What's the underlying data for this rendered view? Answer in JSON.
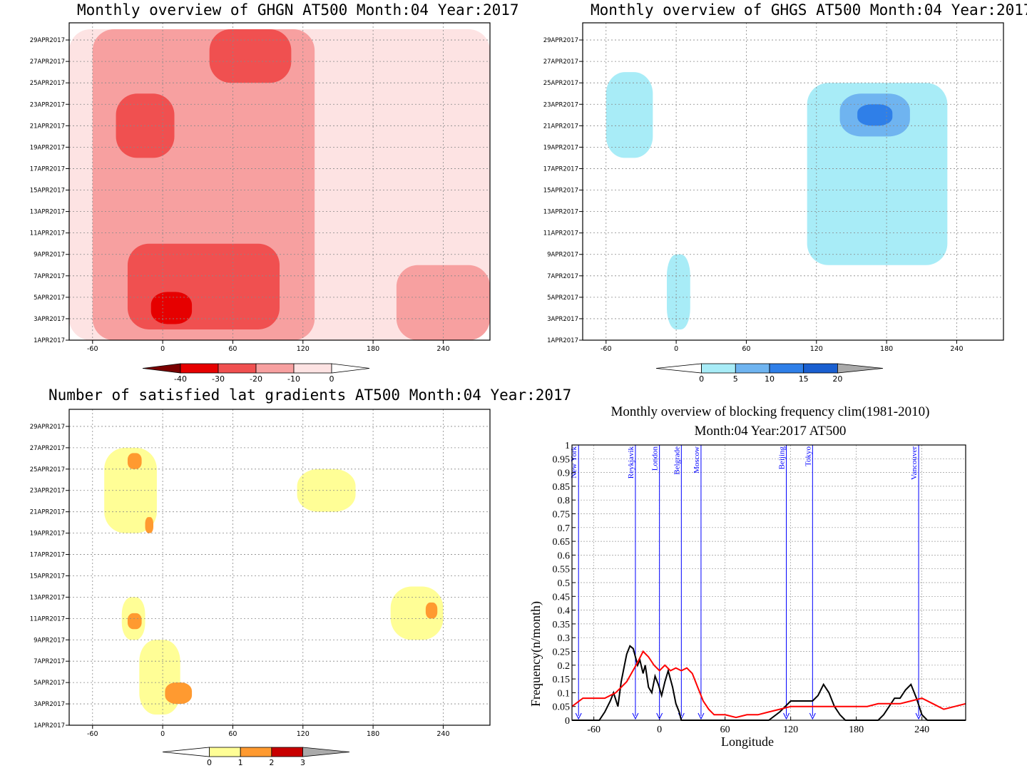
{
  "chart_data": [
    {
      "id": "ghgn",
      "type": "heatmap",
      "title": "Monthly overview of GHGN AT500 Month:04 Year:2017",
      "x_ticks": [
        -60,
        0,
        60,
        120,
        180,
        240
      ],
      "xlim": [
        -80,
        280
      ],
      "y_ticks": [
        "1APR2017",
        "3APR2017",
        "5APR2017",
        "7APR2017",
        "9APR2017",
        "11APR2017",
        "13APR2017",
        "15APR2017",
        "17APR2017",
        "19APR2017",
        "21APR2017",
        "23APR2017",
        "25APR2017",
        "27APR2017",
        "29APR2017"
      ],
      "colorbar": {
        "labels": [
          "-40",
          "-30",
          "-20",
          "-10",
          "0"
        ],
        "colors": [
          "#7a0000",
          "#e60000",
          "#f05050",
          "#f7a0a0",
          "#fde3e3"
        ]
      },
      "regions": [
        {
          "level": "0..-10",
          "color": "#fde3e3",
          "lon": [
            -80,
            280
          ],
          "day": [
            1,
            30
          ]
        },
        {
          "level": "-10..-20",
          "color": "#f7a0a0",
          "lon": [
            -60,
            130
          ],
          "day": [
            1,
            30
          ]
        },
        {
          "level": "-10..-20",
          "color": "#f7a0a0",
          "lon": [
            200,
            280
          ],
          "day": [
            1,
            8
          ]
        },
        {
          "level": "-20..-30",
          "color": "#f05050",
          "lon": [
            -30,
            100
          ],
          "day": [
            2,
            10
          ]
        },
        {
          "level": "-20..-30",
          "color": "#f05050",
          "lon": [
            -40,
            10
          ],
          "day": [
            18,
            24
          ]
        },
        {
          "level": "-20..-30",
          "color": "#f05050",
          "lon": [
            40,
            110
          ],
          "day": [
            25,
            30
          ]
        },
        {
          "level": "-30..-40",
          "color": "#e60000",
          "lon": [
            -10,
            25
          ],
          "day": [
            2.5,
            5.5
          ]
        }
      ]
    },
    {
      "id": "ghgs",
      "type": "heatmap",
      "title": "Monthly overview of GHGS AT500 Month:04 Year:2017",
      "x_ticks": [
        -60,
        0,
        60,
        120,
        180,
        240
      ],
      "xlim": [
        -80,
        280
      ],
      "y_ticks": [
        "1APR2017",
        "3APR2017",
        "5APR2017",
        "7APR2017",
        "9APR2017",
        "11APR2017",
        "13APR2017",
        "15APR2017",
        "17APR2017",
        "19APR2017",
        "21APR2017",
        "23APR2017",
        "25APR2017",
        "27APR2017",
        "29APR2017"
      ],
      "colorbar": {
        "labels": [
          "0",
          "5",
          "10",
          "15",
          "20"
        ],
        "colors": [
          "#a8ecf7",
          "#6fb4f0",
          "#2f7fe8",
          "#1a5fd0"
        ]
      },
      "regions": [
        {
          "level": "0..5",
          "color": "#a8ecf7",
          "lon": [
            -60,
            -20
          ],
          "day": [
            18,
            26
          ]
        },
        {
          "level": "0..5",
          "color": "#a8ecf7",
          "lon": [
            112,
            232
          ],
          "day": [
            8,
            25
          ]
        },
        {
          "level": "0..5",
          "color": "#a8ecf7",
          "lon": [
            -8,
            12
          ],
          "day": [
            2,
            9
          ]
        },
        {
          "level": "5..10",
          "color": "#6fb4f0",
          "lon": [
            140,
            200
          ],
          "day": [
            20,
            24
          ]
        },
        {
          "level": "10..15",
          "color": "#2f7fe8",
          "lon": [
            155,
            185
          ],
          "day": [
            21,
            23
          ]
        }
      ]
    },
    {
      "id": "lat-gradients",
      "type": "heatmap",
      "title": "Number of satisfied lat gradients AT500 Month:04 Year:2017",
      "x_ticks": [
        -60,
        0,
        60,
        120,
        180,
        240
      ],
      "xlim": [
        -80,
        280
      ],
      "y_ticks": [
        "1APR2017",
        "3APR2017",
        "5APR2017",
        "7APR2017",
        "9APR2017",
        "11APR2017",
        "13APR2017",
        "15APR2017",
        "17APR2017",
        "19APR2017",
        "21APR2017",
        "23APR2017",
        "25APR2017",
        "27APR2017",
        "29APR2017"
      ],
      "colorbar": {
        "labels": [
          "0",
          "1",
          "2",
          "3"
        ],
        "colors": [
          "#fffe96",
          "#ff9a30",
          "#c80000"
        ]
      },
      "regions": [
        {
          "level": "1",
          "color": "#fffe96",
          "lon": [
            -50,
            -5
          ],
          "day": [
            19,
            27
          ]
        },
        {
          "level": "1",
          "color": "#fffe96",
          "lon": [
            115,
            165
          ],
          "day": [
            21,
            25
          ]
        },
        {
          "level": "1",
          "color": "#fffe96",
          "lon": [
            -35,
            -15
          ],
          "day": [
            9,
            13
          ]
        },
        {
          "level": "1",
          "color": "#fffe96",
          "lon": [
            -20,
            15
          ],
          "day": [
            2,
            9
          ]
        },
        {
          "level": "1",
          "color": "#fffe96",
          "lon": [
            195,
            240
          ],
          "day": [
            9,
            14
          ]
        },
        {
          "level": "2",
          "color": "#ff9a30",
          "lon": [
            -30,
            -18
          ],
          "day": [
            25,
            26.5
          ]
        },
        {
          "level": "2",
          "color": "#ff9a30",
          "lon": [
            -15,
            -8
          ],
          "day": [
            19,
            20.5
          ]
        },
        {
          "level": "2",
          "color": "#ff9a30",
          "lon": [
            -30,
            -18
          ],
          "day": [
            10,
            11.5
          ]
        },
        {
          "level": "2",
          "color": "#ff9a30",
          "lon": [
            2,
            25
          ],
          "day": [
            3,
            5
          ]
        },
        {
          "level": "2",
          "color": "#ff9a30",
          "lon": [
            225,
            235
          ],
          "day": [
            11,
            12.5
          ]
        }
      ]
    },
    {
      "id": "blocking-frequency",
      "type": "line",
      "title": "Monthly overview of blocking frequency clim(1981-2010)",
      "subtitle": "Month:04 Year:2017  AT500",
      "xlabel": "Longitude",
      "ylabel": "Frequency(n/month)",
      "xlim": [
        -80,
        280
      ],
      "ylim": [
        0,
        1
      ],
      "x_ticks": [
        -60,
        0,
        60,
        120,
        180,
        240
      ],
      "y_ticks": [
        "0",
        "0.05",
        "0.1",
        "0.15",
        "0.2",
        "0.25",
        "0.3",
        "0.35",
        "0.4",
        "0.45",
        "0.5",
        "0.55",
        "0.6",
        "0.65",
        "0.7",
        "0.75",
        "0.8",
        "0.85",
        "0.9",
        "0.95",
        "1"
      ],
      "cities": [
        {
          "name": "New York",
          "lon": -74
        },
        {
          "name": "Reykjavik",
          "lon": -22
        },
        {
          "name": "London",
          "lon": 0
        },
        {
          "name": "Belgrade",
          "lon": 20
        },
        {
          "name": "Moscow",
          "lon": 38
        },
        {
          "name": "Beijing",
          "lon": 116
        },
        {
          "name": "Tokyo",
          "lon": 140
        },
        {
          "name": "Vancouver",
          "lon": 237
        }
      ],
      "series": [
        {
          "color": "#000000",
          "x": [
            -80,
            -60,
            -55,
            -50,
            -45,
            -42,
            -38,
            -35,
            -32,
            -30,
            -27,
            -24,
            -20,
            -18,
            -15,
            -13,
            -10,
            -7,
            -4,
            -1,
            2,
            5,
            8,
            12,
            15,
            18,
            20,
            23,
            28,
            35,
            45,
            60,
            80,
            90,
            100,
            110,
            115,
            120,
            130,
            140,
            145,
            150,
            155,
            160,
            165,
            170,
            180,
            190,
            200,
            205,
            210,
            215,
            220,
            225,
            230,
            235,
            240,
            245,
            250,
            260,
            270,
            280
          ],
          "y": [
            0,
            0,
            0,
            0.03,
            0.07,
            0.1,
            0.05,
            0.14,
            0.2,
            0.24,
            0.27,
            0.26,
            0.2,
            0.22,
            0.17,
            0.2,
            0.12,
            0.1,
            0.16,
            0.13,
            0.09,
            0.14,
            0.18,
            0.12,
            0.06,
            0.03,
            0.0,
            0.0,
            0.0,
            0.0,
            0.0,
            0.0,
            0.0,
            0.0,
            0.0,
            0.03,
            0.05,
            0.07,
            0.07,
            0.07,
            0.09,
            0.13,
            0.1,
            0.05,
            0.02,
            0.0,
            0.0,
            0.0,
            0.0,
            0.02,
            0.05,
            0.08,
            0.08,
            0.11,
            0.13,
            0.08,
            0.02,
            0.0,
            0.0,
            0.0,
            0.0,
            0.0
          ]
        },
        {
          "color": "#ff0000",
          "x": [
            -80,
            -70,
            -60,
            -50,
            -40,
            -30,
            -20,
            -15,
            -10,
            -5,
            0,
            5,
            10,
            15,
            20,
            25,
            30,
            35,
            40,
            45,
            50,
            60,
            70,
            80,
            90,
            100,
            110,
            120,
            130,
            140,
            150,
            160,
            170,
            180,
            190,
            200,
            210,
            220,
            230,
            240,
            250,
            260,
            270,
            280
          ],
          "y": [
            0.05,
            0.08,
            0.08,
            0.08,
            0.1,
            0.14,
            0.21,
            0.25,
            0.23,
            0.2,
            0.18,
            0.2,
            0.18,
            0.19,
            0.18,
            0.19,
            0.17,
            0.12,
            0.07,
            0.04,
            0.02,
            0.02,
            0.01,
            0.02,
            0.02,
            0.03,
            0.04,
            0.05,
            0.05,
            0.05,
            0.05,
            0.05,
            0.05,
            0.05,
            0.05,
            0.06,
            0.06,
            0.06,
            0.07,
            0.08,
            0.06,
            0.04,
            0.05,
            0.06
          ]
        }
      ]
    }
  ]
}
